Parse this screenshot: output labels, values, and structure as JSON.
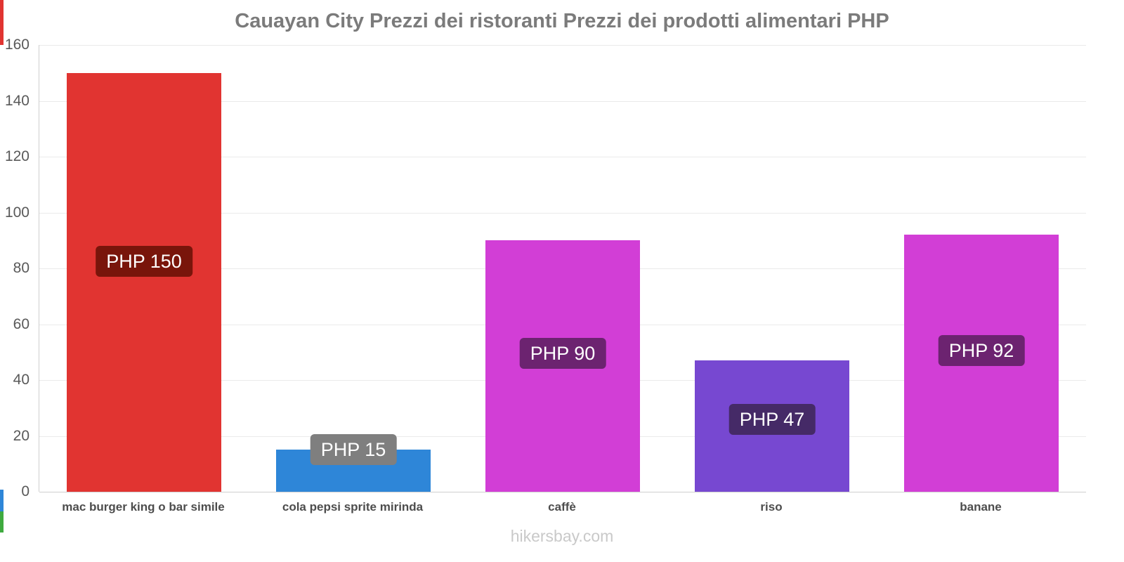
{
  "page": {
    "footer": "hikersbay.com"
  },
  "chart_data": {
    "type": "bar",
    "title": "Cauayan City Prezzi dei ristoranti Prezzi dei prodotti alimentari PHP",
    "categories": [
      "mac burger king o bar simile",
      "cola pepsi sprite mirinda",
      "caffè",
      "riso",
      "banane"
    ],
    "values": [
      150,
      15,
      90,
      47,
      92
    ],
    "value_labels": [
      "PHP 150",
      "PHP 15",
      "PHP 90",
      "PHP 47",
      "PHP 92"
    ],
    "bar_colors": [
      "#e13431",
      "#2e86d8",
      "#d23ed6",
      "#7748d1",
      "#d23ed6"
    ],
    "label_colors": [
      "#79150b",
      "#7f7f7f",
      "#6c2370",
      "#452a67",
      "#6c2370"
    ],
    "currency": "PHP",
    "xlabel": "",
    "ylabel": "",
    "ylim": [
      0,
      160
    ],
    "yticks": [
      0,
      20,
      40,
      60,
      80,
      100,
      120,
      140,
      160
    ],
    "grid": true,
    "legend": false
  },
  "accents": {
    "top_red": "#e13431",
    "bottom_blue": "#2e86d8",
    "bottom_green": "#3faa3f"
  }
}
